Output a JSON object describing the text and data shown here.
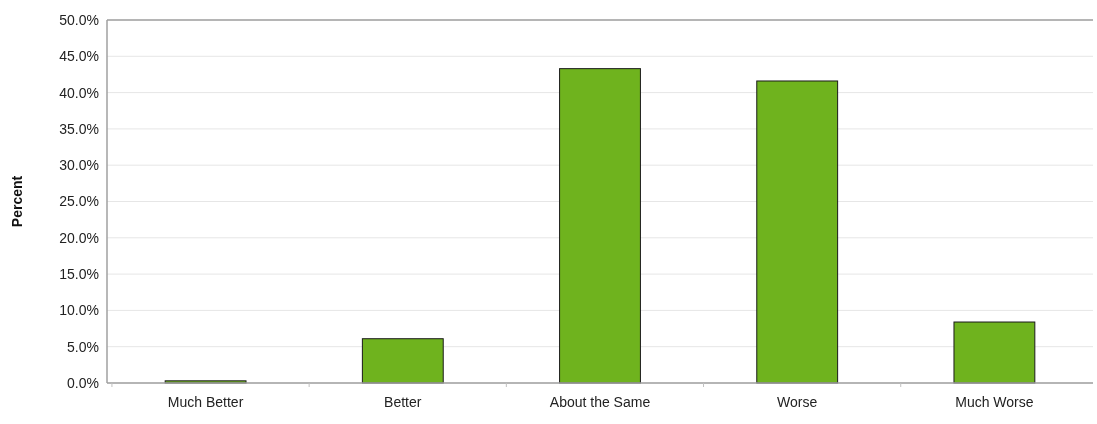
{
  "chart_data": {
    "type": "bar",
    "ylabel": "Percent",
    "categories": [
      "Much Better",
      "Better",
      "About the Same",
      "Worse",
      "Much Worse"
    ],
    "values": [
      0.3,
      6.1,
      43.3,
      41.6,
      8.4
    ],
    "color": "#6fb31e",
    "ylim": [
      0,
      50
    ],
    "yticks": [
      {
        "value": 0,
        "label": "0.0%"
      },
      {
        "value": 5,
        "label": "5.0%"
      },
      {
        "value": 10,
        "label": "10.0%"
      },
      {
        "value": 15,
        "label": "15.0%"
      },
      {
        "value": 20,
        "label": "20.0%"
      },
      {
        "value": 25,
        "label": "25.0%"
      },
      {
        "value": 30,
        "label": "30.0%"
      },
      {
        "value": 35,
        "label": "35.0%"
      },
      {
        "value": 40,
        "label": "40.0%"
      },
      {
        "value": 45,
        "label": "45.0%"
      },
      {
        "value": 50,
        "label": "50.0%"
      }
    ],
    "grid": "y"
  }
}
